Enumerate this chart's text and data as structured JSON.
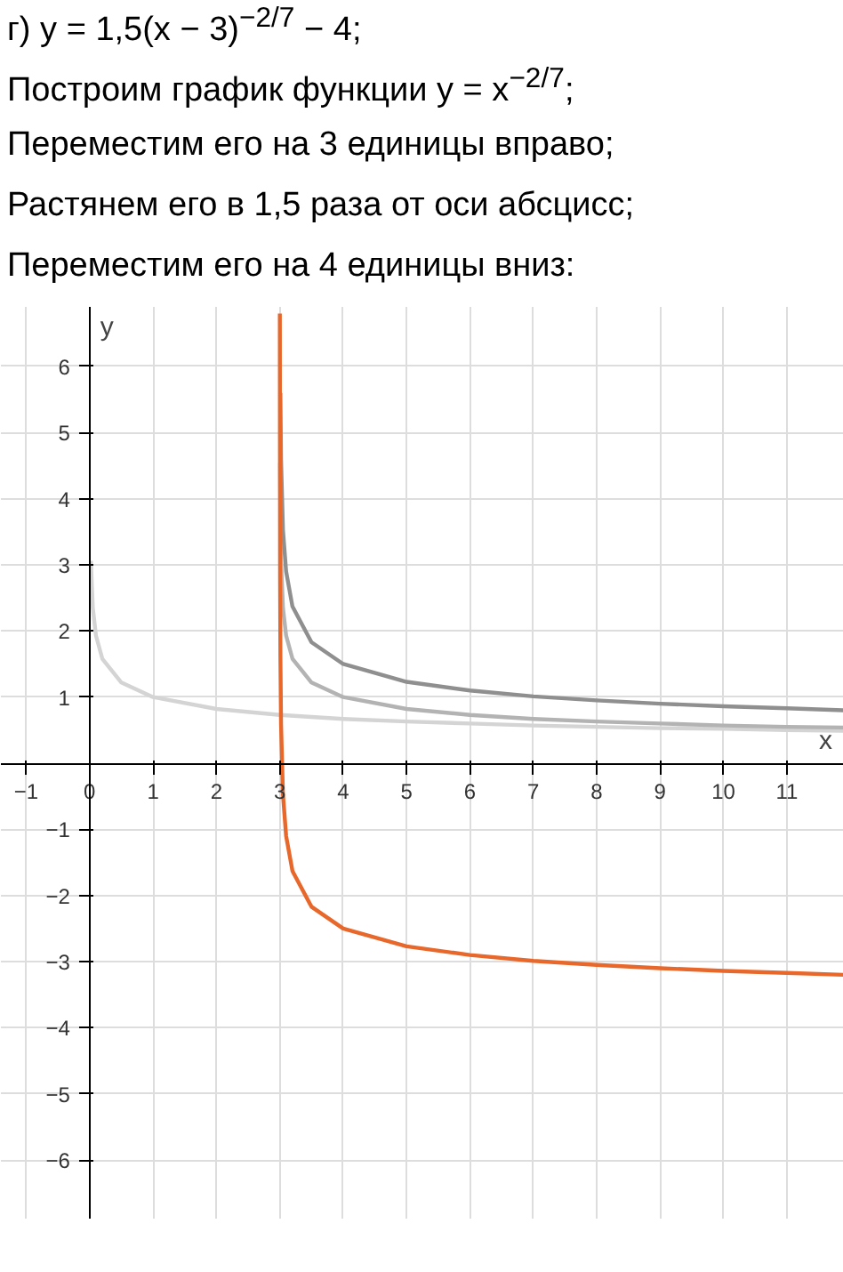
{
  "chart_data": {
    "type": "line",
    "annotations": [
      "г) y = 1,5(x − 3)$^{−2/7}$ − 4;",
      "Построим график функции y = x$^{−2/7}$;",
      "Переместим его на 3 единицы вправо;",
      "Растянем его в 1,5 раза от оси абсцисс;",
      "Переместим его на 4 единицы вниз:"
    ],
    "xlabel": "x",
    "ylabel": "y",
    "xlim": [
      -1.4,
      11.9
    ],
    "ylim": [
      -6.9,
      6.9
    ],
    "xticks": [
      -1,
      0,
      1,
      2,
      3,
      4,
      5,
      6,
      7,
      8,
      9,
      10,
      11
    ],
    "yticks": [
      -6,
      -5,
      -4,
      -3,
      -2,
      -1,
      1,
      2,
      3,
      4,
      5,
      6
    ],
    "grid": true,
    "line_style": "solid",
    "marker": "none",
    "series": [
      {
        "color": "#d4d4d4",
        "x": [
          0.02,
          0.05,
          0.1,
          0.2,
          0.5,
          1,
          2,
          3,
          4,
          5,
          6,
          7,
          8,
          9,
          10,
          11,
          11.9
        ],
        "values": [
          3.06,
          2.35,
          1.93,
          1.58,
          1.22,
          1,
          0.82,
          0.73,
          0.67,
          0.63,
          0.6,
          0.57,
          0.55,
          0.53,
          0.52,
          0.5,
          0.49
        ]
      },
      {
        "color": "#b3b3b3",
        "x": [
          3.005,
          3.01,
          3.02,
          3.05,
          3.1,
          3.2,
          3.5,
          4,
          5,
          6,
          7,
          8,
          9,
          10,
          11,
          11.9
        ],
        "values": [
          4.54,
          3.73,
          3.06,
          2.35,
          1.93,
          1.58,
          1.22,
          1,
          0.82,
          0.73,
          0.67,
          0.63,
          0.6,
          0.57,
          0.55,
          0.54
        ]
      },
      {
        "color": "#8f8f8f",
        "x": [
          3.01,
          3.02,
          3.05,
          3.1,
          3.2,
          3.5,
          4,
          5,
          6,
          7,
          8,
          9,
          10,
          11,
          11.9
        ],
        "values": [
          5.6,
          4.59,
          3.53,
          2.9,
          2.37,
          1.83,
          1.5,
          1.23,
          1.1,
          1.01,
          0.95,
          0.9,
          0.86,
          0.83,
          0.8
        ]
      },
      {
        "color": "#e8672a",
        "x": [
          3.001,
          3.005,
          3.01,
          3.02,
          3.05,
          3.1,
          3.2,
          3.5,
          4,
          5,
          6,
          7,
          8,
          9,
          10,
          11,
          11.9
        ],
        "values": [
          6.8,
          2.81,
          1.6,
          0.59,
          -0.47,
          -1.1,
          -1.63,
          -2.17,
          -2.5,
          -2.77,
          -2.9,
          -2.99,
          -3.05,
          -3.1,
          -3.14,
          -3.17,
          -3.2
        ]
      }
    ]
  }
}
